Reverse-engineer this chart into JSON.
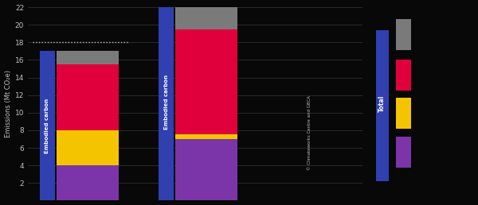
{
  "bar1_segments": [
    4.0,
    4.0,
    7.5,
    1.5
  ],
  "bar2_segments": [
    7.0,
    0.5,
    12.0,
    3.0
  ],
  "seg_colors": [
    "#7B35A8",
    "#F5C400",
    "#E0003C",
    "#7A7A7A"
  ],
  "bar_blue_color": "#3040B0",
  "bar_width": 0.42,
  "blue_bar_width": 0.1,
  "bar1_x": 0.75,
  "bar2_x": 1.55,
  "ylim": [
    0,
    22
  ],
  "yticks": [
    2,
    4,
    6,
    8,
    10,
    12,
    14,
    16,
    18,
    20,
    22
  ],
  "ylabel": "Emissions (Mt CO₂e)",
  "bg_color": "#080808",
  "text_color": "#c0c0c0",
  "bar_label": "Embodied carbon",
  "legend_title": "Total",
  "legend_blue_color": "#3040B0",
  "legend_colors": [
    "#7A7A7A",
    "#E0003C",
    "#F5C400",
    "#7B35A8"
  ],
  "dotted_line_y": 18,
  "dotted_line_x1": 0.38,
  "dotted_line_x2": 1.03,
  "source_text": "© Climateworks Centre and GBCA",
  "xlim": [
    0.35,
    2.6
  ]
}
